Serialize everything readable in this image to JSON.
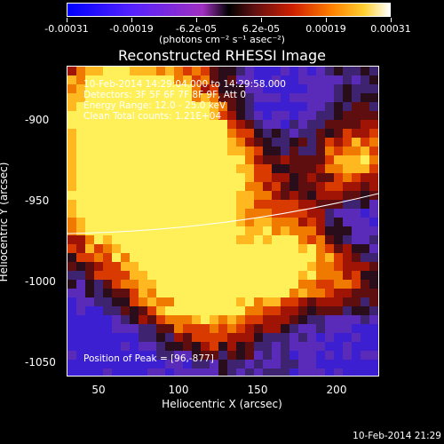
{
  "colorbar": {
    "tick_labels": [
      "-0.00031",
      "-0.00019",
      "-6.2e-05",
      "6.2e-05",
      "0.00019",
      "0.00031"
    ],
    "units_label": "(photons cm⁻² s⁻¹ asec⁻²)"
  },
  "title": "Reconstructed RHESSI Image",
  "overlay": {
    "line1": "10-Feb-2014 14:29:04.000 to 14:29:58.000",
    "line2": "Detectors: 3F 5F 6F 7F 8F 9F, Att 0",
    "line3": "Energy Range: 12.0 - 25.0 keV",
    "line4": "Clean    Total counts: 1.21E+04",
    "peak": "Position of Peak = [96,-877]"
  },
  "axes": {
    "xlabel": "Heliocentric X (arcsec)",
    "ylabel": "Heliocentric Y (arcsec)",
    "x_ticks": [
      "50",
      "100",
      "150",
      "200"
    ],
    "y_ticks": [
      "-900",
      "-950",
      "-1000",
      "-1050"
    ],
    "xlim": [
      32,
      225
    ],
    "ylim": [
      -1057,
      -865
    ]
  },
  "timestamp": "10-Feb-2014 21:29",
  "colors": {
    "background": "#000000",
    "foreground": "#ffffff"
  }
}
